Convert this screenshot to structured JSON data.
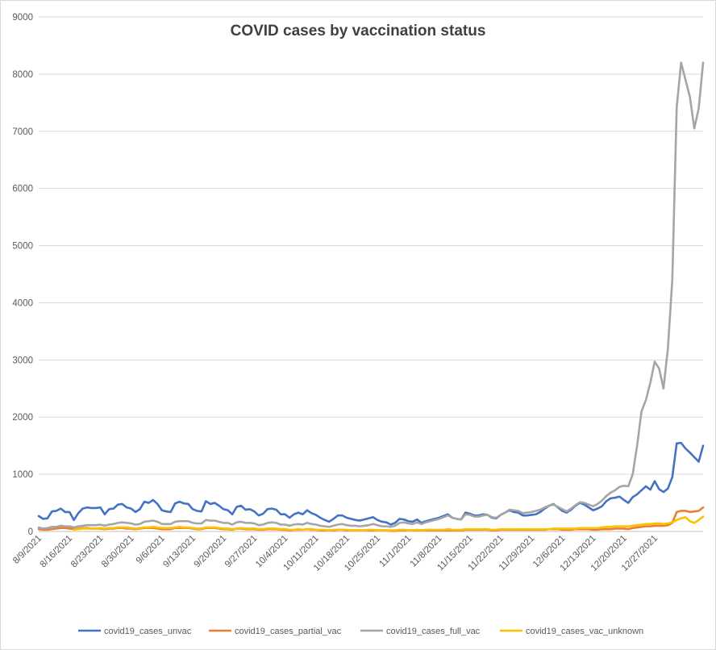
{
  "chart_data": {
    "type": "line",
    "title": "COVID cases by vaccination status",
    "xlabel": "",
    "ylabel": "",
    "ylim": [
      0,
      9000
    ],
    "yticks": [
      0,
      1000,
      2000,
      3000,
      4000,
      5000,
      6000,
      7000,
      8000,
      9000
    ],
    "ytick_labels": [
      "0",
      "1000",
      "2000",
      "3000",
      "4000",
      "5000",
      "6000",
      "7000",
      "8000",
      "9000"
    ],
    "xtick_labels": [
      "8/9/2021",
      "8/16/2021",
      "8/23/2021",
      "8/30/2021",
      "9/6/2021",
      "9/13/2021",
      "9/20/2021",
      "9/27/2021",
      "10/4/2021",
      "10/11/2021",
      "10/18/2021",
      "10/25/2021",
      "11/1/2021",
      "11/8/2021",
      "11/15/2021",
      "11/22/2021",
      "11/29/2021",
      "12/6/2021",
      "12/13/2021",
      "12/20/2021",
      "12/27/2021"
    ],
    "gridlines": true,
    "legend_position": "bottom",
    "series": [
      {
        "name": "covid19_cases_unvac",
        "color": "#4472c4",
        "values": [
          270,
          220,
          230,
          350,
          360,
          400,
          340,
          340,
          200,
          320,
          400,
          420,
          410,
          410,
          420,
          300,
          390,
          400,
          470,
          480,
          420,
          400,
          340,
          390,
          520,
          500,
          550,
          480,
          370,
          350,
          340,
          490,
          520,
          490,
          480,
          390,
          360,
          350,
          530,
          480,
          500,
          450,
          390,
          370,
          300,
          430,
          450,
          380,
          390,
          350,
          280,
          310,
          390,
          400,
          380,
          300,
          300,
          240,
          300,
          330,
          300,
          370,
          320,
          290,
          240,
          200,
          170,
          220,
          280,
          280,
          240,
          220,
          200,
          190,
          210,
          230,
          250,
          200,
          170,
          160,
          120,
          150,
          220,
          210,
          180,
          170,
          210,
          150,
          180,
          200,
          220,
          240,
          270,
          300,
          240,
          220,
          210,
          330,
          310,
          280,
          280,
          300,
          290,
          240,
          230,
          290,
          330,
          370,
          340,
          330,
          280,
          280,
          290,
          300,
          340,
          400,
          450,
          480,
          420,
          360,
          330,
          380,
          450,
          500,
          470,
          420,
          370,
          400,
          440,
          530,
          580,
          590,
          610,
          550,
          500,
          600,
          650,
          720,
          790,
          730,
          880,
          740,
          690,
          750,
          950,
          1540,
          1550,
          1450,
          1380,
          1300,
          1220,
          1500
        ]
      },
      {
        "name": "covid19_cases_partial_vac",
        "color": "#ed7d31",
        "values": [
          40,
          30,
          30,
          40,
          50,
          60,
          60,
          50,
          40,
          50,
          60,
          60,
          50,
          50,
          50,
          40,
          50,
          50,
          60,
          60,
          50,
          50,
          40,
          50,
          60,
          60,
          60,
          50,
          40,
          40,
          40,
          60,
          60,
          60,
          60,
          50,
          40,
          40,
          60,
          60,
          60,
          50,
          40,
          40,
          30,
          50,
          50,
          40,
          40,
          40,
          30,
          30,
          40,
          40,
          40,
          30,
          30,
          20,
          30,
          30,
          30,
          40,
          30,
          30,
          20,
          20,
          20,
          20,
          30,
          30,
          20,
          20,
          20,
          20,
          20,
          20,
          20,
          20,
          20,
          20,
          10,
          10,
          20,
          20,
          20,
          20,
          20,
          20,
          20,
          20,
          20,
          20,
          20,
          20,
          20,
          20,
          20,
          30,
          30,
          30,
          30,
          30,
          30,
          20,
          20,
          30,
          30,
          30,
          30,
          30,
          30,
          30,
          30,
          30,
          30,
          30,
          40,
          40,
          40,
          30,
          30,
          30,
          40,
          40,
          40,
          40,
          30,
          30,
          40,
          40,
          40,
          50,
          50,
          50,
          40,
          60,
          70,
          80,
          90,
          90,
          100,
          100,
          100,
          110,
          150,
          340,
          360,
          360,
          340,
          350,
          360,
          420
        ]
      },
      {
        "name": "covid19_cases_full_vac",
        "color": "#a5a5a5",
        "values": [
          70,
          50,
          60,
          80,
          80,
          100,
          90,
          90,
          70,
          90,
          100,
          110,
          110,
          110,
          120,
          100,
          120,
          130,
          150,
          160,
          150,
          140,
          120,
          130,
          170,
          180,
          190,
          170,
          130,
          130,
          130,
          170,
          180,
          180,
          180,
          150,
          140,
          140,
          200,
          190,
          190,
          170,
          150,
          150,
          120,
          160,
          170,
          150,
          150,
          140,
          110,
          120,
          150,
          160,
          150,
          120,
          120,
          100,
          120,
          130,
          120,
          150,
          130,
          120,
          100,
          90,
          80,
          100,
          120,
          130,
          110,
          100,
          100,
          90,
          100,
          110,
          130,
          110,
          90,
          90,
          80,
          100,
          150,
          160,
          140,
          130,
          160,
          130,
          160,
          180,
          200,
          220,
          250,
          280,
          240,
          220,
          210,
          300,
          290,
          260,
          260,
          280,
          290,
          250,
          240,
          290,
          330,
          380,
          370,
          360,
          320,
          330,
          340,
          360,
          380,
          420,
          450,
          470,
          430,
          390,
          350,
          400,
          460,
          510,
          500,
          470,
          440,
          480,
          540,
          620,
          680,
          720,
          780,
          800,
          790,
          1000,
          1500,
          2100,
          2300,
          2600,
          2970,
          2850,
          2500,
          3200,
          4400,
          7420,
          8200,
          7900,
          7600,
          7050,
          7400,
          8200
        ]
      },
      {
        "name": "covid19_cases_vac_unknown",
        "color": "#ffc000",
        "values": [
          null,
          null,
          null,
          null,
          null,
          null,
          null,
          null,
          30,
          40,
          50,
          50,
          50,
          50,
          60,
          50,
          60,
          60,
          70,
          70,
          70,
          60,
          50,
          60,
          70,
          70,
          80,
          70,
          60,
          60,
          60,
          70,
          80,
          70,
          70,
          60,
          50,
          50,
          70,
          70,
          70,
          60,
          50,
          50,
          40,
          50,
          60,
          50,
          50,
          50,
          40,
          40,
          50,
          50,
          50,
          40,
          40,
          30,
          30,
          40,
          30,
          40,
          40,
          30,
          30,
          30,
          20,
          30,
          30,
          30,
          30,
          20,
          20,
          20,
          20,
          30,
          30,
          20,
          20,
          20,
          20,
          20,
          30,
          30,
          20,
          20,
          30,
          20,
          30,
          30,
          30,
          30,
          30,
          40,
          30,
          30,
          30,
          40,
          40,
          40,
          40,
          40,
          40,
          30,
          30,
          40,
          40,
          40,
          40,
          40,
          40,
          40,
          40,
          40,
          40,
          40,
          40,
          50,
          50,
          50,
          50,
          50,
          50,
          60,
          60,
          60,
          60,
          60,
          70,
          80,
          80,
          90,
          90,
          90,
          90,
          100,
          110,
          120,
          130,
          130,
          140,
          140,
          130,
          140,
          160,
          200,
          230,
          250,
          180,
          150,
          200,
          260
        ]
      }
    ]
  }
}
